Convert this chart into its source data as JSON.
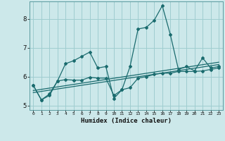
{
  "xlabel": "Humidex (Indice chaleur)",
  "bg_color": "#cce8ea",
  "grid_color": "#9fcdd0",
  "line_color": "#1a6b6e",
  "xlim": [
    -0.5,
    23.5
  ],
  "ylim": [
    4.85,
    8.6
  ],
  "yticks": [
    5,
    6,
    7,
    8
  ],
  "xticks": [
    0,
    1,
    2,
    3,
    4,
    5,
    6,
    7,
    8,
    9,
    10,
    11,
    12,
    13,
    14,
    15,
    16,
    17,
    18,
    19,
    20,
    21,
    22,
    23
  ],
  "series1_x": [
    0,
    1,
    2,
    3,
    4,
    5,
    6,
    7,
    8,
    9,
    10,
    11,
    12,
    13,
    14,
    15,
    16,
    17,
    18,
    19,
    20,
    21,
    22,
    23
  ],
  "series1_y": [
    5.7,
    5.2,
    5.4,
    5.85,
    6.45,
    6.55,
    6.7,
    6.85,
    6.3,
    6.35,
    5.25,
    5.55,
    6.35,
    7.65,
    7.7,
    7.95,
    8.45,
    7.45,
    6.25,
    6.35,
    6.2,
    6.65,
    6.3,
    6.35
  ],
  "series2_x": [
    0,
    1,
    2,
    3,
    4,
    5,
    6,
    7,
    8,
    9,
    10,
    11,
    12,
    13,
    14,
    15,
    16,
    17,
    18,
    19,
    20,
    21,
    22,
    23
  ],
  "series2_y": [
    5.7,
    5.2,
    5.35,
    5.85,
    5.9,
    5.88,
    5.88,
    5.98,
    5.95,
    5.95,
    5.35,
    5.55,
    5.62,
    5.95,
    6.0,
    6.08,
    6.12,
    6.12,
    6.18,
    6.18,
    6.18,
    6.2,
    6.25,
    6.3
  ],
  "series3_x": [
    0,
    23
  ],
  "series3_y": [
    5.45,
    6.42
  ],
  "series4_x": [
    0,
    23
  ],
  "series4_y": [
    5.52,
    6.5
  ]
}
